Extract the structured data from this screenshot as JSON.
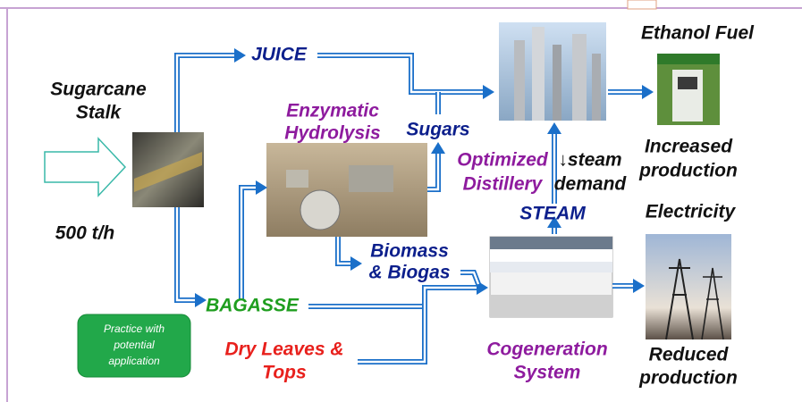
{
  "input": {
    "label": [
      "Sugarcane",
      "Stalk"
    ],
    "rate": "500 t/h"
  },
  "streams": {
    "juice": "JUICE",
    "sugars": "Sugars",
    "bagasse": "BAGASSE",
    "biomass": [
      "Biomass",
      "& Biogas"
    ],
    "dry_leaves": [
      "Dry Leaves &",
      "Tops"
    ],
    "steam": "STEAM"
  },
  "processes": {
    "hydrolysis": [
      "Enzymatic",
      "Hydrolysis"
    ],
    "distillery": [
      "Optimized",
      "Distillery"
    ],
    "steam_demand": [
      "↓steam",
      "demand"
    ],
    "cogeneration": [
      "Cogeneration",
      "System"
    ]
  },
  "outputs": {
    "ethanol": {
      "title": "Ethanol Fuel",
      "note": [
        "Increased",
        "production"
      ]
    },
    "electricity": {
      "title": "Electricity",
      "note": [
        "Reduced",
        "production"
      ]
    }
  },
  "legend": [
    "Practice with",
    "potential",
    "application"
  ]
}
